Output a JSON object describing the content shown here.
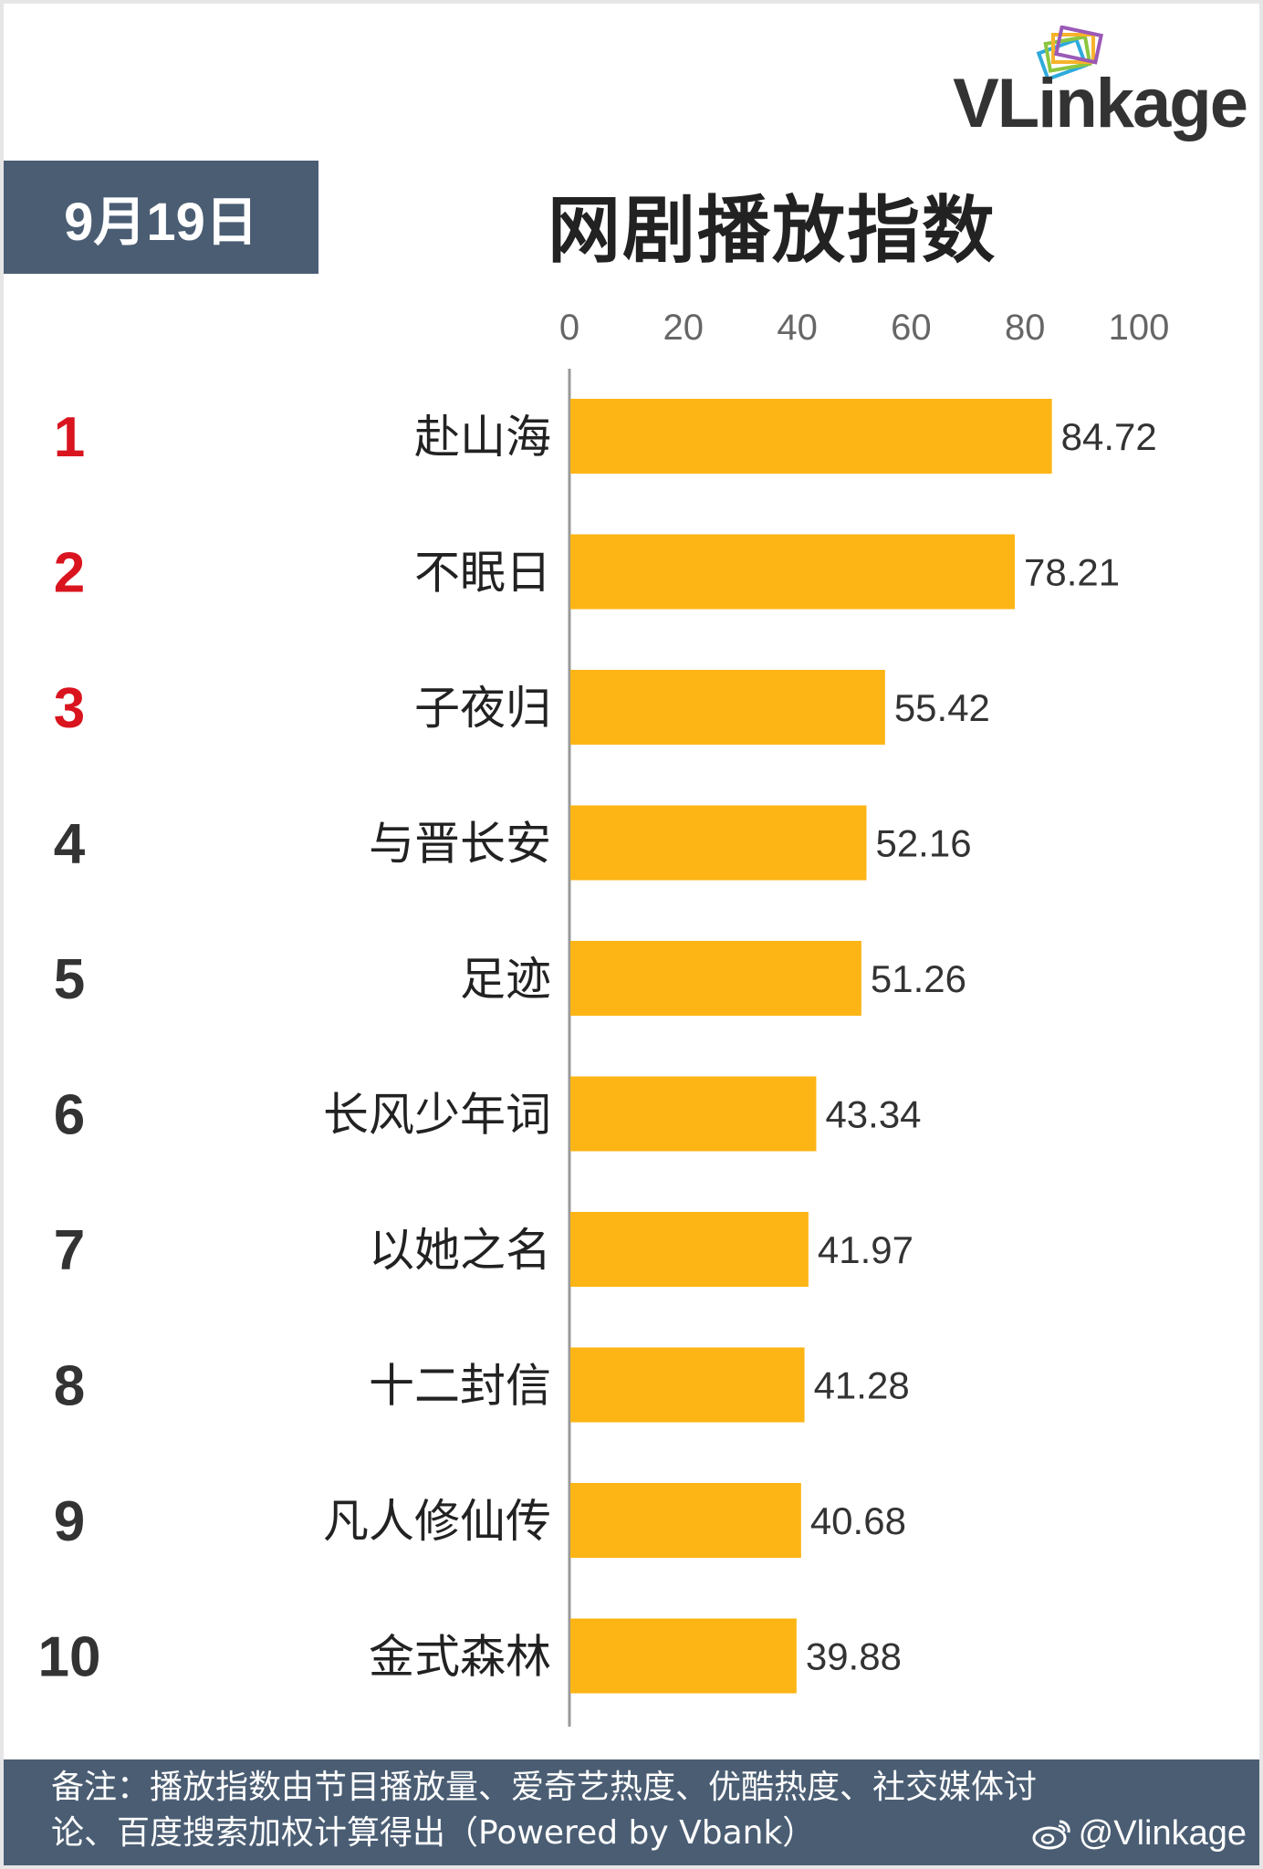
{
  "brand": {
    "logo_text": "VLinkage"
  },
  "header": {
    "date": "9月19日",
    "title": "网剧播放指数"
  },
  "chart_data": {
    "type": "bar",
    "orientation": "horizontal",
    "title": "网剧播放指数",
    "xlim": [
      0,
      100
    ],
    "x_ticks": [
      "0",
      "20",
      "40",
      "60",
      "80",
      "100"
    ],
    "ranks": [
      "1",
      "2",
      "3",
      "4",
      "5",
      "6",
      "7",
      "8",
      "9",
      "10"
    ],
    "categories": [
      "赴山海",
      "不眠日",
      "子夜归",
      "与晋长安",
      "足迹",
      "长风少年词",
      "以她之名",
      "十二封信",
      "凡人修仙传",
      "金式森林"
    ],
    "values": [
      84.72,
      78.21,
      55.42,
      52.16,
      51.26,
      43.34,
      41.97,
      41.28,
      40.68,
      39.88
    ],
    "value_labels": [
      "84.72",
      "78.21",
      "55.42",
      "52.16",
      "51.26",
      "43.34",
      "41.97",
      "41.28",
      "40.68",
      "39.88"
    ],
    "bar_color": "#fdb515",
    "top_rank_color": "#d9141f",
    "rank_color": "#333333"
  },
  "footer": {
    "note_line1": "备注：播放指数由节目播放量、爱奇艺热度、优酷热度、社交媒体讨",
    "note_line2": "论、百度搜索加权计算得出（Powered by Vbank）",
    "watermark": "@Vlinkage"
  },
  "colors": {
    "badge_bg": "#4a5d73",
    "logo_red": "#e3242b"
  }
}
